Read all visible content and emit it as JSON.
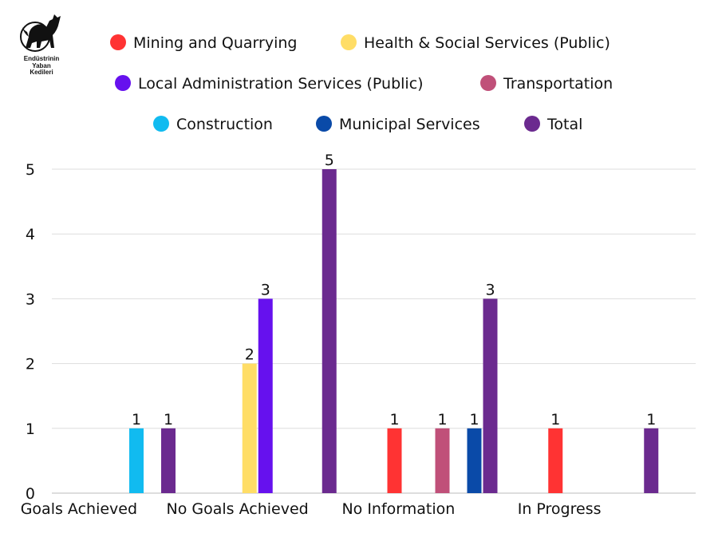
{
  "logo": {
    "line1": "Endüstrinin",
    "line2": "Yaban",
    "line3": "Kedileri"
  },
  "chart_data": {
    "type": "bar",
    "title": "",
    "xlabel": "",
    "ylabel": "",
    "ylim": [
      0,
      5
    ],
    "yticks": [
      "0",
      "1",
      "2",
      "3",
      "4",
      "5"
    ],
    "grid": true,
    "legend_position": "top",
    "categories": [
      "Goals Achieved",
      "No Goals Achieved",
      "No Information",
      "In Progress"
    ],
    "series": [
      {
        "name": "Mining and Quarrying",
        "color": "#ff3333",
        "values": [
          null,
          null,
          1,
          1
        ]
      },
      {
        "name": "Health & Social Services (Public)",
        "color": "#ffdd66",
        "values": [
          null,
          2,
          null,
          null
        ]
      },
      {
        "name": "Local Administration Services (Public)",
        "color": "#6611ee",
        "values": [
          null,
          3,
          null,
          null
        ]
      },
      {
        "name": "Transportation",
        "color": "#c05079",
        "values": [
          null,
          null,
          1,
          null
        ]
      },
      {
        "name": "Construction",
        "color": "#11bbf0",
        "values": [
          1,
          null,
          null,
          null
        ]
      },
      {
        "name": "Municipal Services",
        "color": "#0a4aa8",
        "values": [
          null,
          null,
          1,
          null
        ]
      },
      {
        "name": "Total",
        "color": "#6b2a8f",
        "values": [
          1,
          5,
          3,
          1
        ]
      }
    ]
  }
}
